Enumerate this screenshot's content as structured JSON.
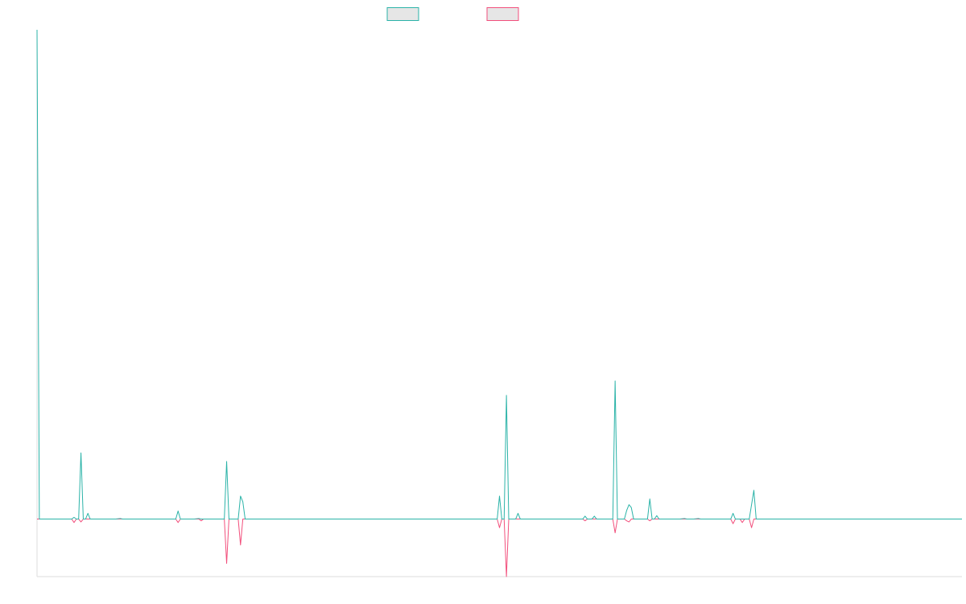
{
  "chart_data": {
    "type": "line",
    "title": "",
    "xlabel": "",
    "ylabel": "",
    "grid": false,
    "legend_position": "top-center",
    "xlim": [
      0,
      200
    ],
    "ylim": [
      -100,
      850
    ],
    "series": [
      {
        "color": "#2bb3a8",
        "legend_fill": "#e6e6e6",
        "points": [
          [
            0,
            850
          ],
          [
            0.5,
            0
          ],
          [
            7.5,
            0
          ],
          [
            8,
            3
          ],
          [
            8.5,
            0
          ],
          [
            9,
            0
          ],
          [
            9.5,
            115
          ],
          [
            10,
            0
          ],
          [
            10.5,
            0
          ],
          [
            11,
            10
          ],
          [
            11.5,
            0
          ],
          [
            17,
            0
          ],
          [
            18,
            1
          ],
          [
            18.5,
            0
          ],
          [
            30,
            0
          ],
          [
            30.5,
            14
          ],
          [
            31,
            0
          ],
          [
            34,
            0
          ],
          [
            35,
            1
          ],
          [
            35.5,
            0
          ],
          [
            40.5,
            0
          ],
          [
            41,
            100
          ],
          [
            41.5,
            0
          ],
          [
            43.5,
            0
          ],
          [
            44,
            40
          ],
          [
            44.5,
            30
          ],
          [
            45,
            0
          ],
          [
            99.5,
            0
          ],
          [
            100,
            40
          ],
          [
            100.5,
            0
          ],
          [
            101,
            0
          ],
          [
            101.5,
            215
          ],
          [
            102,
            0
          ],
          [
            103.5,
            0
          ],
          [
            104,
            10
          ],
          [
            104.5,
            0
          ],
          [
            118,
            0
          ],
          [
            118.5,
            5
          ],
          [
            119,
            0
          ],
          [
            120,
            0
          ],
          [
            120.5,
            5
          ],
          [
            121,
            0
          ],
          [
            124.5,
            0
          ],
          [
            125,
            240
          ],
          [
            125.5,
            0
          ],
          [
            127,
            0
          ],
          [
            127.5,
            15
          ],
          [
            128,
            25
          ],
          [
            128.5,
            20
          ],
          [
            129,
            0
          ],
          [
            132,
            0
          ],
          [
            132.5,
            35
          ],
          [
            133,
            0
          ],
          [
            133.5,
            0
          ],
          [
            134,
            6
          ],
          [
            134.5,
            0
          ],
          [
            139,
            0
          ],
          [
            140,
            1
          ],
          [
            140.5,
            0
          ],
          [
            142,
            0
          ],
          [
            143,
            1
          ],
          [
            143.5,
            0
          ],
          [
            150,
            0
          ],
          [
            150.5,
            10
          ],
          [
            151,
            0
          ],
          [
            154,
            0
          ],
          [
            155,
            50
          ],
          [
            155.5,
            0
          ],
          [
            200,
            0
          ]
        ]
      },
      {
        "color": "#f24f7c",
        "legend_fill": "#e6e6e6",
        "points": [
          [
            0,
            0
          ],
          [
            7.5,
            0
          ],
          [
            8,
            -6
          ],
          [
            8.5,
            0
          ],
          [
            9,
            0
          ],
          [
            9.5,
            -5
          ],
          [
            10,
            0
          ],
          [
            30,
            0
          ],
          [
            30.5,
            -6
          ],
          [
            31,
            0
          ],
          [
            35,
            0
          ],
          [
            35.5,
            -3
          ],
          [
            36,
            0
          ],
          [
            40.5,
            0
          ],
          [
            41,
            -77
          ],
          [
            41.5,
            0
          ],
          [
            43.5,
            0
          ],
          [
            44,
            -45
          ],
          [
            44.5,
            0
          ],
          [
            99.5,
            0
          ],
          [
            100,
            -15
          ],
          [
            100.5,
            0
          ],
          [
            101,
            0
          ],
          [
            101.5,
            -100
          ],
          [
            102,
            0
          ],
          [
            118,
            0
          ],
          [
            118.5,
            -3
          ],
          [
            119,
            0
          ],
          [
            124.5,
            0
          ],
          [
            125,
            -24
          ],
          [
            125.5,
            0
          ],
          [
            127,
            0
          ],
          [
            127.5,
            -3
          ],
          [
            128,
            -5
          ],
          [
            128.5,
            0
          ],
          [
            132,
            0
          ],
          [
            132.5,
            -3
          ],
          [
            133,
            0
          ],
          [
            150,
            0
          ],
          [
            150.5,
            -8
          ],
          [
            151,
            0
          ],
          [
            152,
            0
          ],
          [
            152.5,
            -6
          ],
          [
            153,
            0
          ],
          [
            154,
            0
          ],
          [
            154.5,
            -15
          ],
          [
            155,
            0
          ],
          [
            200,
            0
          ]
        ]
      }
    ]
  }
}
